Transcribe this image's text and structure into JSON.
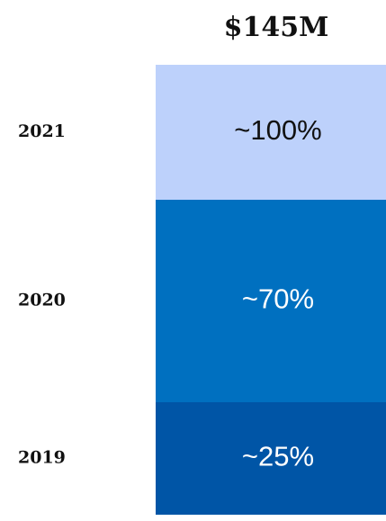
{
  "chart_data": {
    "type": "stacked_bar",
    "title": "$145M",
    "categories": [
      "2019",
      "2020",
      "2021"
    ],
    "values": [
      25,
      45,
      30
    ],
    "annotations": [
      "~25%",
      "~70%",
      "~100%"
    ],
    "colors": [
      "#0055a6",
      "#0070c0",
      "#bdd1fb"
    ],
    "ylim": [
      0,
      100
    ]
  }
}
